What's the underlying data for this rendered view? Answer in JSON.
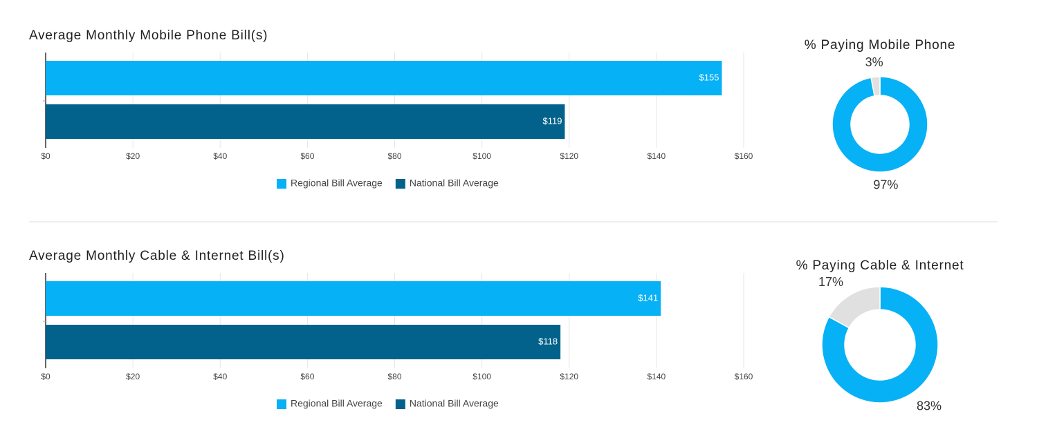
{
  "chart_data": [
    {
      "type": "bar",
      "orientation": "horizontal",
      "title": "Average Monthly Mobile Phone Bill(s)",
      "categories": [
        null
      ],
      "series": [
        {
          "name": "Regional Bill Average",
          "color": "#06b1f6",
          "values": [
            155
          ],
          "value_labels": [
            "$155"
          ]
        },
        {
          "name": "National Bill Average",
          "color": "#02628b",
          "values": [
            119
          ],
          "value_labels": [
            "$119"
          ]
        }
      ],
      "xlim": [
        0,
        160
      ],
      "xticks": [
        {
          "value": 0,
          "label": "$0"
        },
        {
          "value": 20,
          "label": "$20"
        },
        {
          "value": 40,
          "label": "$40"
        },
        {
          "value": 60,
          "label": "$60"
        },
        {
          "value": 80,
          "label": "$80"
        },
        {
          "value": 100,
          "label": "$100"
        },
        {
          "value": 120,
          "label": "$120"
        },
        {
          "value": 140,
          "label": "$140"
        },
        {
          "value": 160,
          "label": "$160"
        }
      ],
      "grid": true,
      "legend": "bottom"
    },
    {
      "type": "pie",
      "donut": true,
      "title": "% Paying Mobile Phone",
      "values": [
        97,
        3
      ],
      "value_labels": [
        "97%",
        "3%"
      ],
      "colors": [
        "#06b1f6",
        "#e0e0e0"
      ]
    },
    {
      "type": "bar",
      "orientation": "horizontal",
      "title": "Average Monthly Cable & Internet Bill(s)",
      "categories": [
        null
      ],
      "series": [
        {
          "name": "Regional Bill Average",
          "color": "#06b1f6",
          "values": [
            141
          ],
          "value_labels": [
            "$141"
          ]
        },
        {
          "name": "National Bill Average",
          "color": "#02628b",
          "values": [
            118
          ],
          "value_labels": [
            "$118"
          ]
        }
      ],
      "xlim": [
        0,
        160
      ],
      "xticks": [
        {
          "value": 0,
          "label": "$0"
        },
        {
          "value": 20,
          "label": "$20"
        },
        {
          "value": 40,
          "label": "$40"
        },
        {
          "value": 60,
          "label": "$60"
        },
        {
          "value": 80,
          "label": "$80"
        },
        {
          "value": 100,
          "label": "$100"
        },
        {
          "value": 120,
          "label": "$120"
        },
        {
          "value": 140,
          "label": "$140"
        },
        {
          "value": 160,
          "label": "$160"
        }
      ],
      "grid": true,
      "legend": "bottom"
    },
    {
      "type": "pie",
      "donut": true,
      "title": "% Paying Cable & Internet",
      "values": [
        83,
        17
      ],
      "value_labels": [
        "83%",
        "17%"
      ],
      "colors": [
        "#06b1f6",
        "#e0e0e0"
      ]
    }
  ]
}
